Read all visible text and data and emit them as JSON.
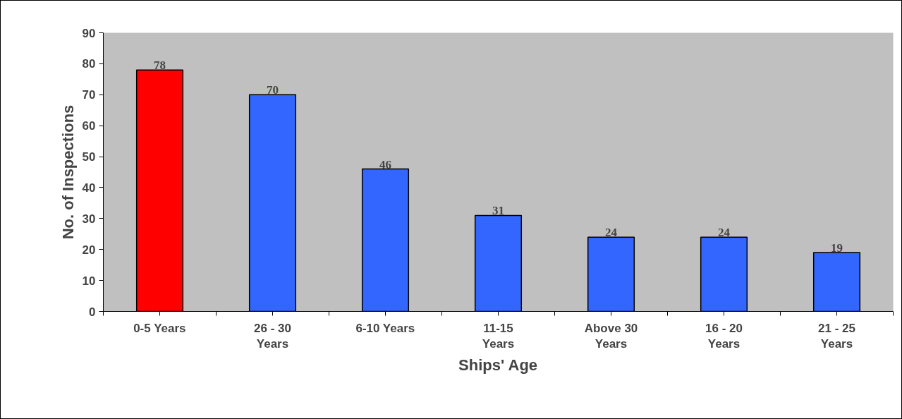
{
  "chart_data": {
    "type": "bar",
    "xlabel": "Ships' Age",
    "ylabel": "No. of Inspections",
    "categories": [
      "0-5 Years",
      "26 - 30 Years",
      "6-10 Years",
      "11-15 Years",
      "Above 30 Years",
      "16 - 20 Years",
      "21 - 25 Years"
    ],
    "values": [
      78,
      70,
      46,
      31,
      24,
      24,
      19
    ],
    "colors": [
      "#ff0000",
      "#3366ff",
      "#3366ff",
      "#3366ff",
      "#3366ff",
      "#3366ff",
      "#3366ff"
    ],
    "ylim": [
      0,
      90
    ],
    "yticks": [
      0,
      10,
      20,
      30,
      40,
      50,
      60,
      70,
      80,
      90
    ],
    "grid": false,
    "data_labels": true
  }
}
